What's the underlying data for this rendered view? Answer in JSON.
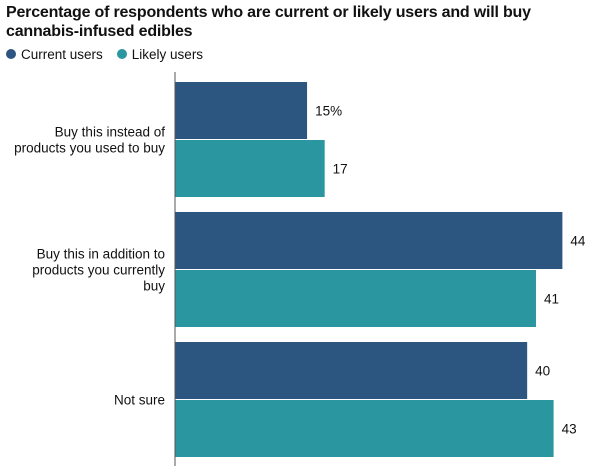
{
  "chart_data": {
    "type": "bar",
    "orientation": "horizontal",
    "title": "Percentage of respondents who are current or likely users and will buy cannabis-infused edibles",
    "xlim": [
      0,
      46
    ],
    "categories": [
      "Buy this instead of products you used to buy",
      "Buy this in addition to products you currently buy",
      "Not sure"
    ],
    "category_lines": [
      [
        "Buy this instead of",
        "products you used to buy"
      ],
      [
        "Buy this in addition to",
        "products you currently",
        "buy"
      ],
      [
        "Not sure"
      ]
    ],
    "series": [
      {
        "name": "Current users",
        "color": "#2c5580",
        "values": [
          15,
          44,
          40
        ],
        "labels": [
          "15%",
          "44",
          "40"
        ]
      },
      {
        "name": "Likely users",
        "color": "#2a96a0",
        "values": [
          17,
          41,
          43
        ],
        "labels": [
          "17",
          "41",
          "43"
        ]
      }
    ],
    "legend_position": "top-left",
    "grid": false
  }
}
